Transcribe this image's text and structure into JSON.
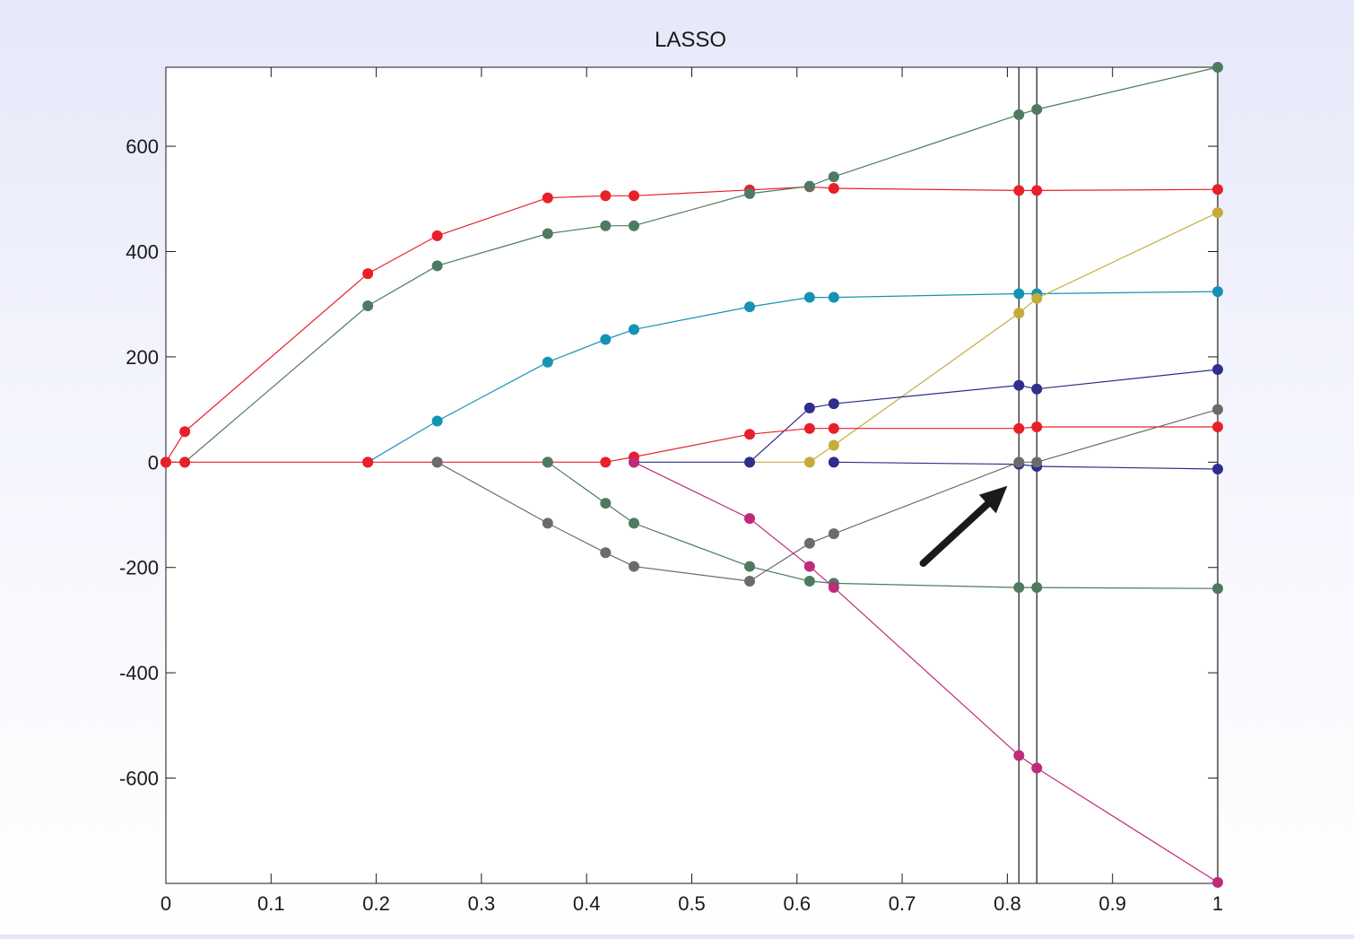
{
  "chart_data": {
    "type": "line",
    "title": "LASSO",
    "xlabel": "",
    "ylabel": "",
    "xlim": [
      0,
      1
    ],
    "ylim": [
      -800,
      750
    ],
    "xticks": [
      0,
      0.1,
      0.2,
      0.3,
      0.4,
      0.5,
      0.6,
      0.7,
      0.8,
      0.9,
      1
    ],
    "xtick_labels": [
      "0",
      "0.1",
      "0.2",
      "0.3",
      "0.4",
      "0.5",
      "0.6",
      "0.7",
      "0.8",
      "0.9",
      "1"
    ],
    "yticks": [
      -600,
      -400,
      -200,
      0,
      200,
      400,
      600
    ],
    "ytick_labels": [
      "-600",
      "-400",
      "-200",
      "0",
      "200",
      "400",
      "600"
    ],
    "grid": false,
    "legend": "none",
    "vertical_lines": [
      0.811,
      0.828,
      1.0
    ],
    "annotations": [
      {
        "type": "arrow",
        "from": [
          0.72,
          -192
        ],
        "to": [
          0.8,
          -45
        ],
        "color": "#1a1a1a"
      }
    ],
    "series": [
      {
        "color": "#e8202a",
        "x": [
          0,
          0.018,
          0.192,
          0.258,
          0.363,
          0.418,
          0.445,
          0.555,
          0.612,
          0.635,
          0.811,
          0.828,
          1.0
        ],
        "y": [
          0,
          58,
          358,
          430,
          502,
          506,
          506,
          517,
          523,
          520,
          516,
          516,
          518
        ]
      },
      {
        "color": "#4e7a62",
        "x": [
          0,
          0.018,
          0.192,
          0.258,
          0.363,
          0.418,
          0.445,
          0.555,
          0.612,
          0.635,
          0.811,
          0.828,
          1.0
        ],
        "y": [
          0,
          0,
          297,
          373,
          434,
          449,
          449,
          510,
          524,
          542,
          660,
          670,
          750
        ]
      },
      {
        "color": "#1592b5",
        "x": [
          0.192,
          0.258,
          0.363,
          0.418,
          0.445,
          0.555,
          0.612,
          0.635,
          0.811,
          0.828,
          1.0
        ],
        "y": [
          0,
          78,
          190,
          233,
          252,
          295,
          313,
          313,
          320,
          320,
          324
        ]
      },
      {
        "color": "#c5ab3a",
        "x": [
          0.555,
          0.612,
          0.635,
          0.811,
          0.828,
          1.0
        ],
        "y": [
          0,
          0,
          32,
          283,
          311,
          474
        ]
      },
      {
        "color": "#2e2e8c",
        "x": [
          0.445,
          0.555,
          0.612,
          0.635,
          0.811,
          0.828,
          1.0
        ],
        "y": [
          0,
          0,
          103,
          111,
          146,
          139,
          176
        ]
      },
      {
        "color": "#2e2e8c",
        "x": [
          0.635,
          0.811,
          0.828,
          1.0
        ],
        "y": [
          0,
          -4,
          -8,
          -13
        ]
      },
      {
        "color": "#e8202a",
        "x": [
          0,
          0.018,
          0.192,
          0.258,
          0.363,
          0.418,
          0.445,
          0.555,
          0.612,
          0.635,
          0.811,
          0.828,
          1.0
        ],
        "y": [
          0,
          0,
          0,
          0,
          0,
          0,
          10,
          53,
          64,
          64,
          64,
          67,
          67
        ]
      },
      {
        "color": "#6b6b6b",
        "x": [
          0.258,
          0.363,
          0.418,
          0.445,
          0.555,
          0.612,
          0.635,
          0.811,
          0.828,
          1.0
        ],
        "y": [
          0,
          -116,
          -172,
          -198,
          -226,
          -154,
          -136,
          0,
          0,
          100
        ]
      },
      {
        "color": "#4e7a62",
        "x": [
          0.363,
          0.418,
          0.445,
          0.555,
          0.612,
          0.635,
          0.811,
          0.828,
          1.0
        ],
        "y": [
          0,
          -78,
          -116,
          -198,
          -226,
          -230,
          -238,
          -238,
          -240
        ]
      },
      {
        "color": "#c02a7a",
        "x": [
          0.445,
          0.555,
          0.612,
          0.635,
          0.811,
          0.828,
          1.0
        ],
        "y": [
          0,
          -107,
          -198,
          -238,
          -557,
          -581,
          -798
        ]
      }
    ]
  }
}
